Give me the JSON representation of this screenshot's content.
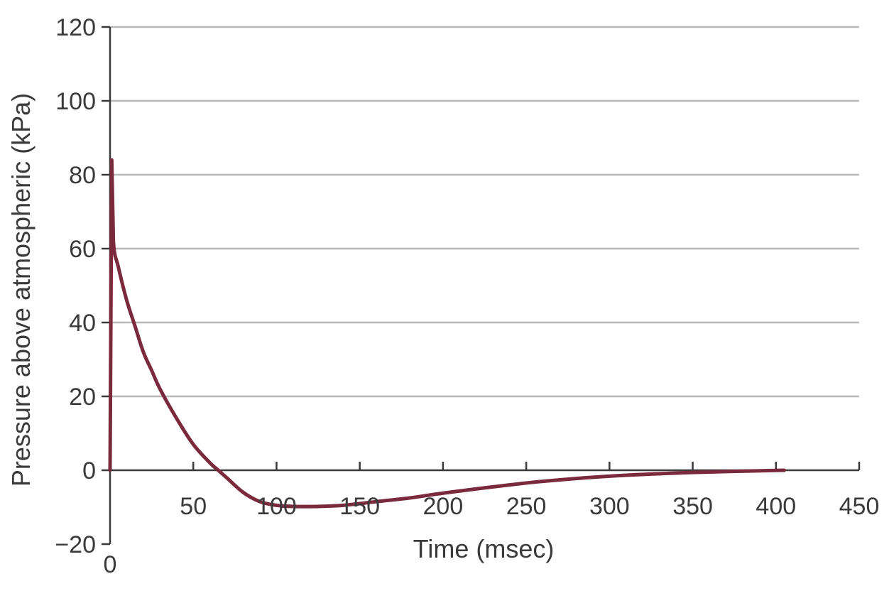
{
  "chart_data": {
    "type": "line",
    "title": "",
    "xlabel": "Time (msec)",
    "ylabel": "Pressure above atmospheric (kPa)",
    "xlim": [
      0,
      450
    ],
    "ylim": [
      -20,
      120
    ],
    "x_ticks": [
      50,
      100,
      150,
      200,
      250,
      300,
      350,
      400,
      450
    ],
    "x_tick_labels": [
      "50",
      "100",
      "150",
      "200",
      "250",
      "300",
      "350",
      "400",
      "450"
    ],
    "x_origin_label": "0",
    "y_ticks": [
      -20,
      0,
      20,
      40,
      60,
      80,
      100,
      120
    ],
    "y_tick_labels": [
      "−20",
      "0",
      "20",
      "40",
      "60",
      "80",
      "100",
      "120"
    ],
    "grid": true,
    "line_color": "#7a2a3c",
    "grid_color": "#b9b9b9",
    "series": [
      {
        "x": [
          0,
          1,
          2,
          5,
          10,
          15,
          20,
          25,
          30,
          40,
          50,
          60,
          65,
          70,
          80,
          90,
          100,
          110,
          125,
          140,
          160,
          180,
          200,
          230,
          260,
          300,
          350,
          405
        ],
        "y": [
          0,
          84,
          62,
          55,
          46,
          39,
          32,
          27,
          22,
          14,
          7,
          2,
          0,
          -2,
          -6,
          -8.5,
          -9.5,
          -9.8,
          -9.8,
          -9.5,
          -8.5,
          -7.5,
          -6.2,
          -4.5,
          -3.0,
          -1.6,
          -0.6,
          0
        ]
      }
    ]
  }
}
